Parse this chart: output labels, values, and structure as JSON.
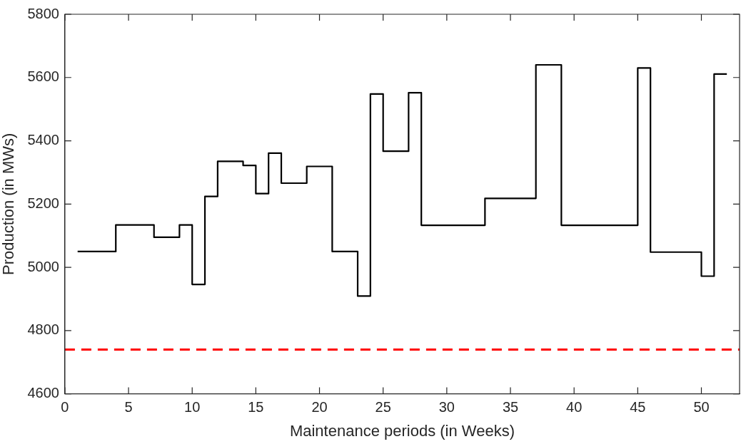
{
  "chart_data": {
    "type": "step",
    "xlabel": "Maintenance periods (in Weeks)",
    "ylabel": "Production (in MWs)",
    "x": [
      1,
      4,
      7,
      9,
      10,
      11,
      12,
      14,
      15,
      16,
      17,
      19,
      21,
      23,
      24,
      25,
      27,
      28,
      33,
      37,
      39,
      45,
      46,
      50,
      51,
      52
    ],
    "series": [
      {
        "color": "#000000",
        "values": [
          5050,
          5134,
          5095,
          5134,
          4946,
          5224,
          5335,
          5322,
          5233,
          5361,
          5266,
          5319,
          5050,
          4909,
          5548,
          5367,
          5552,
          5133,
          5218,
          5640,
          5133,
          5630,
          5048,
          4972,
          5611,
          5611
        ]
      }
    ],
    "xlim": [
      0,
      53
    ],
    "xticks": [
      0,
      5,
      10,
      15,
      20,
      25,
      30,
      35,
      40,
      45,
      50
    ],
    "ylim": [
      4600,
      5800
    ],
    "yticks": [
      4600,
      4800,
      5000,
      5200,
      5400,
      5600,
      5800
    ],
    "ref_lines": [
      {
        "axis": "y",
        "value": 4740,
        "color": "#ff0000",
        "line_style": "dashed"
      }
    ],
    "grid": false,
    "legend": false,
    "marker": "none",
    "line_style": "solid"
  }
}
